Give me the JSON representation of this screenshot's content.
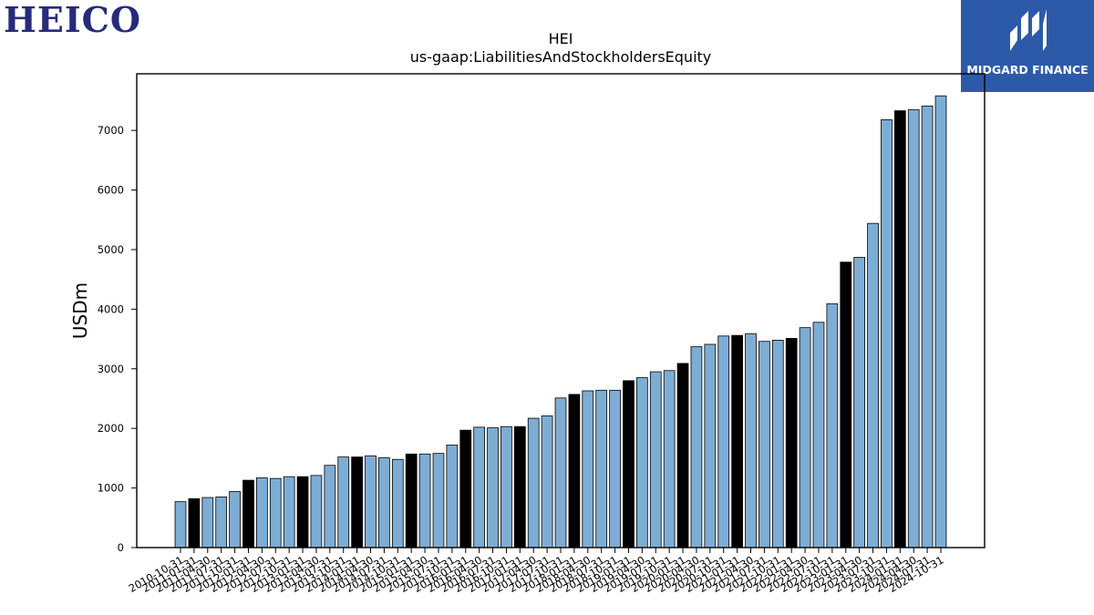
{
  "logos": {
    "left_text": "HEICO",
    "right_text": "MIDGARD FINANCE"
  },
  "chart_data": {
    "type": "bar",
    "title": "HEI",
    "subtitle": "us-gaap:LiabilitiesAndStockholdersEquity",
    "xlabel": "",
    "ylabel": "USDm",
    "ylim": [
      0,
      7950
    ],
    "yticks": [
      0,
      1000,
      2000,
      3000,
      4000,
      5000,
      6000,
      7000
    ],
    "grid": false,
    "colors": {
      "bar_default": "#7eadd4",
      "bar_highlight": "#000000",
      "edge": "#000000"
    },
    "categories": [
      "2010-10-31",
      "2011-01-31",
      "2011-04-30",
      "2011-07-31",
      "2011-10-31",
      "2012-01-31",
      "2012-04-30",
      "2012-07-31",
      "2012-10-31",
      "2013-01-31",
      "2013-04-30",
      "2013-07-31",
      "2013-10-31",
      "2014-01-31",
      "2014-04-30",
      "2014-07-31",
      "2014-10-31",
      "2015-01-31",
      "2015-04-30",
      "2015-07-31",
      "2015-10-31",
      "2016-01-31",
      "2016-04-30",
      "2016-07-31",
      "2016-10-31",
      "2017-01-31",
      "2017-04-30",
      "2017-07-31",
      "2017-10-31",
      "2018-01-31",
      "2018-04-30",
      "2018-07-31",
      "2018-10-31",
      "2019-01-31",
      "2019-04-30",
      "2019-07-31",
      "2019-10-31",
      "2020-01-31",
      "2020-04-30",
      "2020-07-31",
      "2020-10-31",
      "2021-01-31",
      "2021-04-30",
      "2021-07-31",
      "2021-10-31",
      "2022-01-31",
      "2022-04-30",
      "2022-07-31",
      "2022-10-31",
      "2023-01-31",
      "2023-04-30",
      "2023-07-31",
      "2023-10-31",
      "2024-01-31",
      "2024-04-30",
      "2024-07-31",
      "2024-10-31"
    ],
    "values": [
      770,
      820,
      840,
      850,
      940,
      1130,
      1170,
      1160,
      1190,
      1190,
      1210,
      1380,
      1520,
      1520,
      1540,
      1510,
      1480,
      1570,
      1570,
      1580,
      1720,
      1970,
      2020,
      2010,
      2030,
      2030,
      2170,
      2210,
      2510,
      2570,
      2630,
      2640,
      2640,
      2800,
      2850,
      2950,
      2970,
      3090,
      3370,
      3410,
      3550,
      3560,
      3590,
      3460,
      3480,
      3510,
      3690,
      3780,
      4090,
      4790,
      4870,
      5440,
      7180,
      7330,
      7350,
      7410,
      7580
    ],
    "highlight": [
      false,
      true,
      false,
      false,
      false,
      true,
      false,
      false,
      false,
      true,
      false,
      false,
      false,
      true,
      false,
      false,
      false,
      true,
      false,
      false,
      false,
      true,
      false,
      false,
      false,
      true,
      false,
      false,
      false,
      true,
      false,
      false,
      false,
      true,
      false,
      false,
      false,
      true,
      false,
      false,
      false,
      true,
      false,
      false,
      false,
      true,
      false,
      false,
      false,
      true,
      false,
      false,
      false,
      true,
      false,
      false,
      false
    ]
  }
}
